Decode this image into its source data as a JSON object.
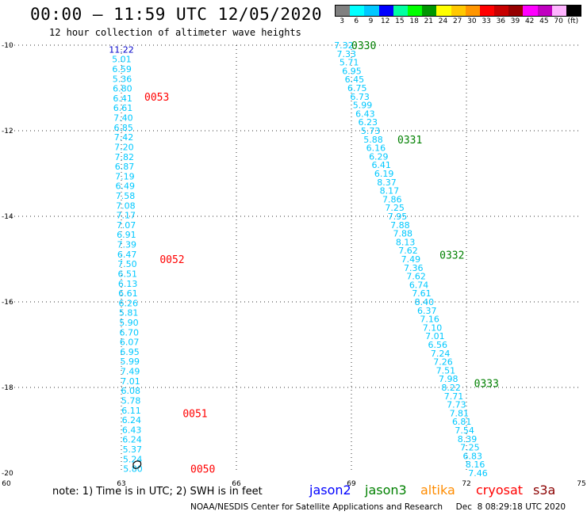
{
  "header": {
    "title": "00:00 – 11:59 UTC 12/05/2020",
    "subtitle": "12 hour collection of altimeter wave heights"
  },
  "color_scale": {
    "labels": [
      "3",
      "6",
      "9",
      "12",
      "15",
      "18",
      "21",
      "24",
      "27",
      "30",
      "33",
      "36",
      "39",
      "42",
      "45",
      "70",
      "(ft)"
    ],
    "colors": [
      "#808080",
      "#00ffff",
      "#00c8ff",
      "#0000ff",
      "#00ffa0",
      "#00ff00",
      "#009600",
      "#ffff00",
      "#ffc800",
      "#ff9600",
      "#ff0000",
      "#c80000",
      "#960000",
      "#ff00ff",
      "#c000c0",
      "#ffb4ff",
      "#000000"
    ]
  },
  "chart_data": {
    "type": "scatter",
    "xlabel": "",
    "ylabel": "",
    "xlim": [
      60,
      75
    ],
    "ylim": [
      -20,
      -10
    ],
    "x_ticks": [
      "60",
      "63",
      "66",
      "69",
      "72",
      "75"
    ],
    "y_ticks": [
      "-10",
      "-12",
      "-14",
      "-16",
      "-18",
      "-20"
    ],
    "grid": true,
    "series": [
      {
        "satellite": "jason2",
        "color": "#00c8ff",
        "track_start": [
          63.0,
          -10.1
        ],
        "track_end": [
          63.3,
          -19.9
        ],
        "values": [
          "11.22",
          "5.01",
          "6.59",
          "5.36",
          "6.80",
          "6.41",
          "6.61",
          "7.40",
          "6.85",
          "7.42",
          "7.20",
          "7.82",
          "6.87",
          "7.19",
          "6.49",
          "7.58",
          "7.08",
          "7.17",
          "7.07",
          "6.91",
          "7.39",
          "6.47",
          "7.50",
          "6.51",
          "6.13",
          "6.61",
          "6.26",
          "5.81",
          "5.90",
          "6.70",
          "6.07",
          "6.95",
          "5.99",
          "7.49",
          "7.01",
          "6.08",
          "5.78",
          "6.11",
          "6.24",
          "6.43",
          "6.24",
          "5.37",
          "5.24",
          "5.80"
        ],
        "time_labels": [
          {
            "text": "0053",
            "lon": 63.6,
            "lat": -11.2
          },
          {
            "text": "0052",
            "lon": 64.0,
            "lat": -15.0
          },
          {
            "text": "0051",
            "lon": 64.6,
            "lat": -18.6
          },
          {
            "text": "0050",
            "lon": 64.8,
            "lat": -19.9
          }
        ],
        "time_color": "#ff0000"
      },
      {
        "satellite": "jason3",
        "color": "#00c8ff",
        "track_start": [
          68.8,
          -10.0
        ],
        "track_end": [
          72.3,
          -20.0
        ],
        "values": [
          "7.32",
          "7.33",
          "5.71",
          "6.95",
          "6.45",
          "6.75",
          "6.73",
          "5.99",
          "6.43",
          "6.23",
          "5.73",
          "5.88",
          "6.16",
          "6.29",
          "6.41",
          "6.19",
          "8.37",
          "8.17",
          "7.86",
          "7.25",
          "7.95",
          "7.88",
          "7.88",
          "8.13",
          "7.62",
          "7.49",
          "7.36",
          "7.62",
          "6.74",
          "7.61",
          "8.40",
          "6.37",
          "7.16",
          "7.10",
          "7.01",
          "6.56",
          "7.24",
          "7.26",
          "7.51",
          "7.98",
          "8.22",
          "7.71",
          "7.73",
          "7.81",
          "6.81",
          "7.54",
          "8.39",
          "7.25",
          "6.83",
          "8.16",
          "7.46"
        ],
        "time_labels": [
          {
            "text": "0330",
            "lon": 69.0,
            "lat": -10.0
          },
          {
            "text": "0331",
            "lon": 70.2,
            "lat": -12.2
          },
          {
            "text": "0332",
            "lon": 71.3,
            "lat": -14.9
          },
          {
            "text": "0333",
            "lon": 72.2,
            "lat": -17.9
          }
        ],
        "time_color": "#008000"
      }
    ]
  },
  "note": "note: 1) Time is in UTC; 2) SWH is in feet",
  "legend": [
    {
      "label": "jason2",
      "color": "#0000ff"
    },
    {
      "label": "jason3",
      "color": "#008000"
    },
    {
      "label": "altika",
      "color": "#ff8c00"
    },
    {
      "label": "cryosat",
      "color": "#ff0000"
    },
    {
      "label": "s3a",
      "color": "#8b0000"
    }
  ],
  "footer": "NOAA/NESDIS Center for Satellite Applications and Research     Dec  8 08:29:18 UTC 2020"
}
